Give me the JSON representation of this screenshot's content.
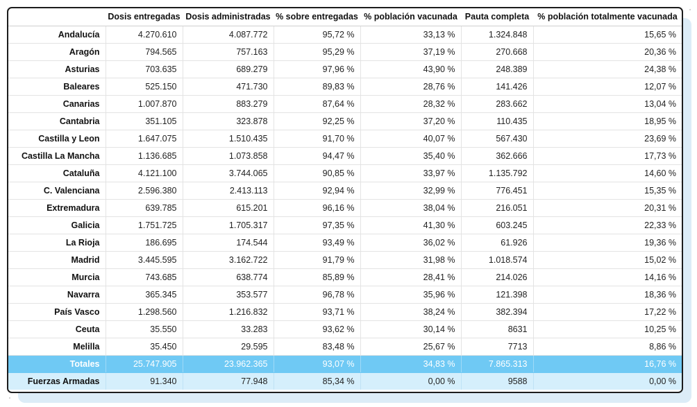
{
  "table": {
    "headers": [
      "",
      "Dosis entregadas",
      "Dosis administradas",
      "% sobre entregadas",
      "% población vacunada",
      "Pauta completa",
      "% población totalmente vacunada"
    ],
    "rows": [
      [
        "Andalucía",
        "4.270.610",
        "4.087.772",
        "95,72 %",
        "33,13 %",
        "1.324.848",
        "15,65 %"
      ],
      [
        "Aragón",
        "794.565",
        "757.163",
        "95,29 %",
        "37,19 %",
        "270.668",
        "20,36 %"
      ],
      [
        "Asturias",
        "703.635",
        "689.279",
        "97,96 %",
        "43,90 %",
        "248.389",
        "24,38 %"
      ],
      [
        "Baleares",
        "525.150",
        "471.730",
        "89,83 %",
        "28,76 %",
        "141.426",
        "12,07 %"
      ],
      [
        "Canarias",
        "1.007.870",
        "883.279",
        "87,64 %",
        "28,32 %",
        "283.662",
        "13,04 %"
      ],
      [
        "Cantabria",
        "351.105",
        "323.878",
        "92,25 %",
        "37,20 %",
        "110.435",
        "18,95 %"
      ],
      [
        "Castilla y Leon",
        "1.647.075",
        "1.510.435",
        "91,70 %",
        "40,07 %",
        "567.430",
        "23,69 %"
      ],
      [
        "Castilla La Mancha",
        "1.136.685",
        "1.073.858",
        "94,47 %",
        "35,40 %",
        "362.666",
        "17,73 %"
      ],
      [
        "Cataluña",
        "4.121.100",
        "3.744.065",
        "90,85 %",
        "33,97 %",
        "1.135.792",
        "14,60 %"
      ],
      [
        "C. Valenciana",
        "2.596.380",
        "2.413.113",
        "92,94 %",
        "32,99 %",
        "776.451",
        "15,35 %"
      ],
      [
        "Extremadura",
        "639.785",
        "615.201",
        "96,16 %",
        "38,04 %",
        "216.051",
        "20,31 %"
      ],
      [
        "Galicia",
        "1.751.725",
        "1.705.317",
        "97,35 %",
        "41,30 %",
        "603.245",
        "22,33 %"
      ],
      [
        "La Rioja",
        "186.695",
        "174.544",
        "93,49 %",
        "36,02 %",
        "61.926",
        "19,36 %"
      ],
      [
        "Madrid",
        "3.445.595",
        "3.162.722",
        "91,79 %",
        "31,98 %",
        "1.018.574",
        "15,02 %"
      ],
      [
        "Murcia",
        "743.685",
        "638.774",
        "85,89 %",
        "28,41 %",
        "214.026",
        "14,16 %"
      ],
      [
        "Navarra",
        "365.345",
        "353.577",
        "96,78 %",
        "35,96 %",
        "121.398",
        "18,36 %"
      ],
      [
        "País Vasco",
        "1.298.560",
        "1.216.832",
        "93,71 %",
        "38,24 %",
        "382.394",
        "17,22 %"
      ],
      [
        "Ceuta",
        "35.550",
        "33.283",
        "93,62 %",
        "30,14 %",
        "8631",
        "10,25 %"
      ],
      [
        "Melilla",
        "35.450",
        "29.595",
        "83,48 %",
        "25,67 %",
        "7713",
        "8,86 %"
      ]
    ],
    "totals": [
      "Totales",
      "25.747.905",
      "23.962.365",
      "93,07 %",
      "34,83 %",
      "7.865.313",
      "16,76 %"
    ],
    "fuerzas_armadas": [
      "Fuerzas Armadas",
      "91.340",
      "77.948",
      "85,34 %",
      "0,00 %",
      "9588",
      "0,00 %"
    ]
  },
  "colors": {
    "totals_row": "#6fc9f4",
    "fuerzas_row": "#d5effc",
    "border": "#1c1c1c"
  }
}
